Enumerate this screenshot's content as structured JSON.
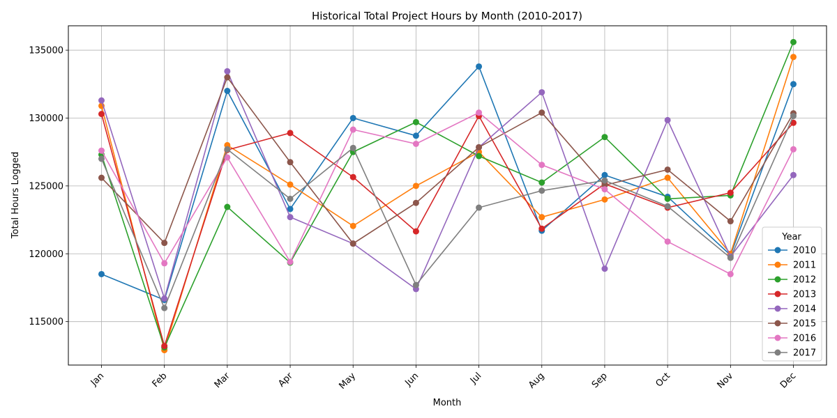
{
  "chart_data": {
    "type": "line",
    "title": "Historical Total Project Hours by Month (2010-2017)",
    "xlabel": "Month",
    "ylabel": "Total Hours Logged",
    "categories": [
      "Jan",
      "Feb",
      "Mar",
      "Apr",
      "May",
      "Jun",
      "Jul",
      "Aug",
      "Sep",
      "Oct",
      "Nov",
      "Dec"
    ],
    "ylim": [
      111800,
      136800
    ],
    "yticks": [
      115000,
      120000,
      125000,
      130000,
      135000
    ],
    "grid": true,
    "legend": {
      "title": "Year",
      "placement": "bottom-right"
    },
    "series": [
      {
        "name": "2010",
        "color": "#1f77b4",
        "values": [
          118500,
          116600,
          132000,
          123300,
          130000,
          128700,
          133800,
          121700,
          125800,
          124200,
          119900,
          132500
        ]
      },
      {
        "name": "2011",
        "color": "#ff7f0e",
        "values": [
          130900,
          112900,
          128000,
          125100,
          122050,
          125000,
          127500,
          122700,
          124000,
          125600,
          120000,
          134500
        ]
      },
      {
        "name": "2012",
        "color": "#2ca02c",
        "values": [
          127300,
          113100,
          123450,
          119350,
          127500,
          129700,
          127200,
          125250,
          128600,
          124050,
          124300,
          135600
        ]
      },
      {
        "name": "2013",
        "color": "#d62728",
        "values": [
          130300,
          113200,
          127650,
          128900,
          125650,
          121650,
          130150,
          121850,
          125150,
          123400,
          124500,
          129650
        ]
      },
      {
        "name": "2014",
        "color": "#9467bd",
        "values": [
          131300,
          116700,
          133450,
          122700,
          120750,
          117400,
          127850,
          131900,
          118900,
          129850,
          119800,
          125800
        ]
      },
      {
        "name": "2015",
        "color": "#8c564b",
        "values": [
          125600,
          120800,
          133000,
          126750,
          120750,
          123750,
          127850,
          130400,
          125050,
          126200,
          122400,
          130350
        ]
      },
      {
        "name": "2016",
        "color": "#e377c2",
        "values": [
          127600,
          119300,
          127100,
          119400,
          129150,
          128100,
          130400,
          126550,
          124750,
          120900,
          118500,
          127700
        ]
      },
      {
        "name": "2017",
        "color": "#7f7f7f",
        "values": [
          127000,
          116000,
          127700,
          124050,
          127800,
          117700,
          123400,
          124650,
          125400,
          123500,
          119700,
          130150
        ]
      }
    ]
  }
}
